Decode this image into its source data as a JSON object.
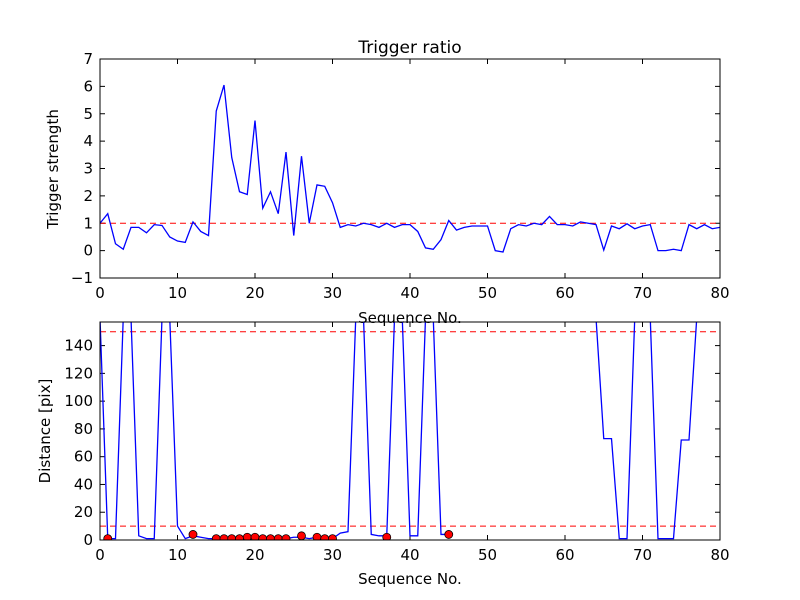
{
  "chart_data": [
    {
      "type": "line",
      "title": "Trigger ratio",
      "xlabel": "Sequence No.",
      "ylabel": "Trigger strength",
      "xlim": [
        0,
        80
      ],
      "ylim": [
        -1,
        7
      ],
      "xticks": [
        0,
        10,
        20,
        30,
        40,
        50,
        60,
        70,
        80
      ],
      "yticks": [
        -1,
        0,
        1,
        2,
        3,
        4,
        5,
        6,
        7
      ],
      "grid": false,
      "threshold": 1,
      "series": [
        {
          "color": "#0000ff",
          "x": [
            0,
            1,
            2,
            3,
            4,
            5,
            6,
            7,
            8,
            9,
            10,
            11,
            12,
            13,
            14,
            15,
            16,
            17,
            18,
            19,
            20,
            21,
            22,
            23,
            24,
            25,
            26,
            27,
            28,
            29,
            30,
            31,
            32,
            33,
            34,
            35,
            36,
            37,
            38,
            39,
            40,
            41,
            42,
            43,
            44,
            45,
            46,
            47,
            48,
            49,
            50,
            51,
            52,
            53,
            54,
            55,
            56,
            57,
            58,
            59,
            60,
            61,
            62,
            63,
            64,
            65,
            66,
            67,
            68,
            69,
            70,
            71,
            72,
            73,
            74,
            75,
            76,
            77,
            78,
            79,
            80
          ],
          "values": [
            1.0,
            1.35,
            0.25,
            0.05,
            0.85,
            0.85,
            0.65,
            0.95,
            0.92,
            0.5,
            0.35,
            0.3,
            1.05,
            0.7,
            0.55,
            5.1,
            6.05,
            3.4,
            2.15,
            2.05,
            4.75,
            1.55,
            2.15,
            1.35,
            3.6,
            0.55,
            3.45,
            1.0,
            2.4,
            2.35,
            1.75,
            0.85,
            0.95,
            0.9,
            1.0,
            0.95,
            0.85,
            1.0,
            0.85,
            0.95,
            0.95,
            0.7,
            0.1,
            0.05,
            0.4,
            1.1,
            0.75,
            0.85,
            0.9,
            0.9,
            0.9,
            0.0,
            -0.05,
            0.8,
            0.95,
            0.9,
            1.0,
            0.95,
            1.25,
            0.95,
            0.95,
            0.9,
            1.05,
            1.0,
            0.95,
            0.02,
            0.9,
            0.8,
            0.98,
            0.8,
            0.9,
            0.95,
            0.0,
            0.0,
            0.05,
            0.0,
            0.95,
            0.8,
            0.95,
            0.8,
            0.85
          ]
        }
      ]
    },
    {
      "type": "line",
      "title": "",
      "xlabel": "Sequence No.",
      "ylabel": "Distance [pix]",
      "xlim": [
        0,
        80
      ],
      "ylim": [
        0,
        157
      ],
      "xticks": [
        0,
        10,
        20,
        30,
        40,
        50,
        60,
        70,
        80
      ],
      "yticks": [
        0,
        20,
        40,
        60,
        80,
        100,
        120,
        140
      ],
      "grid": false,
      "thresholds": [
        10,
        150
      ],
      "series": [
        {
          "color": "#0000ff",
          "x": [
            0,
            1,
            2,
            3,
            4,
            5,
            6,
            7,
            8,
            9,
            10,
            11,
            12,
            13,
            14,
            15,
            16,
            17,
            18,
            19,
            20,
            21,
            22,
            23,
            24,
            25,
            26,
            27,
            28,
            29,
            30,
            31,
            32,
            33,
            34,
            35,
            36,
            37,
            38,
            39,
            40,
            41,
            42,
            43,
            44,
            45,
            46,
            47,
            48,
            49,
            50,
            51,
            52,
            53,
            54,
            55,
            56,
            57,
            58,
            59,
            60,
            61,
            62,
            63,
            64,
            65,
            66,
            67,
            68,
            69,
            70,
            71,
            72,
            73,
            74,
            75,
            76,
            77,
            78,
            79,
            80
          ],
          "values": [
            160,
            1,
            1,
            160,
            160,
            3,
            1,
            1,
            160,
            160,
            10,
            1,
            3,
            2,
            1,
            1,
            1,
            1,
            1,
            1,
            1,
            1,
            1,
            1,
            1,
            2,
            2,
            1,
            2,
            1,
            1,
            5,
            6,
            160,
            160,
            4,
            3,
            3,
            160,
            160,
            3,
            3,
            160,
            160,
            4,
            4,
            null,
            null,
            null,
            null,
            null,
            null,
            null,
            null,
            null,
            null,
            null,
            null,
            null,
            null,
            null,
            null,
            null,
            null,
            160,
            73,
            73,
            1,
            1,
            160,
            160,
            160,
            1,
            1,
            1,
            72,
            72,
            160,
            null,
            null,
            null
          ]
        },
        {
          "type": "scatter",
          "color": "#ff0000",
          "x": [
            1,
            12,
            15,
            16,
            17,
            18,
            19,
            20,
            21,
            22,
            23,
            24,
            26,
            28,
            29,
            30,
            37,
            45
          ],
          "values": [
            1,
            4,
            1,
            1,
            1,
            1,
            2,
            2,
            1,
            1,
            1,
            1,
            3,
            2,
            1,
            1,
            2,
            4
          ]
        }
      ]
    }
  ]
}
